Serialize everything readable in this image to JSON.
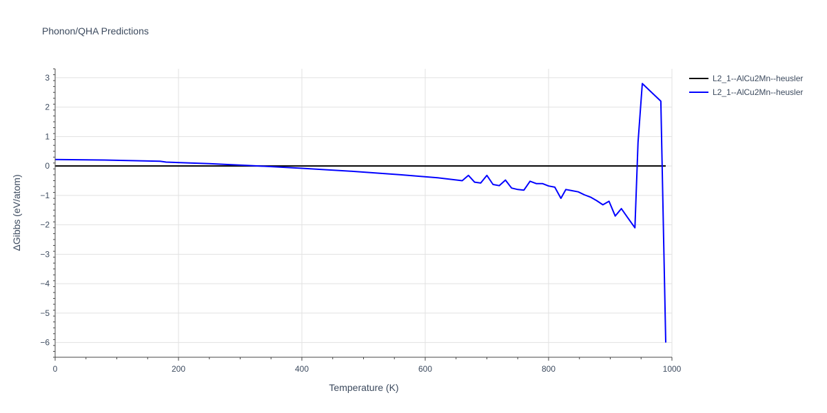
{
  "chart_data": {
    "type": "line",
    "title": "Phonon/QHA Predictions",
    "xlabel": "Temperature (K)",
    "ylabel": "ΔGibbs (eV/atom)",
    "xlim": [
      0,
      1000
    ],
    "ylim": [
      -6.5,
      3.3
    ],
    "xticks": [
      0,
      200,
      400,
      600,
      800,
      1000
    ],
    "yticks": [
      -6,
      -5,
      -4,
      -3,
      -2,
      -1,
      0,
      1,
      2,
      3
    ],
    "ytick_labels": [
      "−6",
      "−5",
      "−4",
      "−3",
      "−2",
      "−1",
      "0",
      "1",
      "2",
      "3"
    ],
    "grid": true,
    "legend_position": "top-right outside",
    "series": [
      {
        "name": "L2_1--AlCu2Mn--heusler",
        "color": "#000000",
        "x": [
          0,
          990
        ],
        "y": [
          0,
          0
        ]
      },
      {
        "name": "L2_1--AlCu2Mn--heusler",
        "color": "#0000ff",
        "x": [
          0,
          80,
          170,
          180,
          250,
          330,
          400,
          480,
          560,
          620,
          660,
          670,
          680,
          690,
          700,
          710,
          720,
          730,
          740,
          750,
          760,
          770,
          780,
          790,
          800,
          810,
          820,
          828,
          838,
          848,
          858,
          868,
          878,
          888,
          898,
          908,
          918,
          928,
          940,
          945,
          952,
          982,
          990
        ],
        "y": [
          0.22,
          0.2,
          0.16,
          0.13,
          0.08,
          0.0,
          -0.08,
          -0.18,
          -0.3,
          -0.4,
          -0.5,
          -0.32,
          -0.55,
          -0.58,
          -0.32,
          -0.63,
          -0.67,
          -0.48,
          -0.75,
          -0.8,
          -0.82,
          -0.52,
          -0.6,
          -0.6,
          -0.68,
          -0.72,
          -1.1,
          -0.8,
          -0.84,
          -0.88,
          -0.98,
          -1.06,
          -1.18,
          -1.32,
          -1.2,
          -1.7,
          -1.45,
          -1.75,
          -2.1,
          0.8,
          2.8,
          2.2,
          -6.0
        ]
      }
    ]
  }
}
